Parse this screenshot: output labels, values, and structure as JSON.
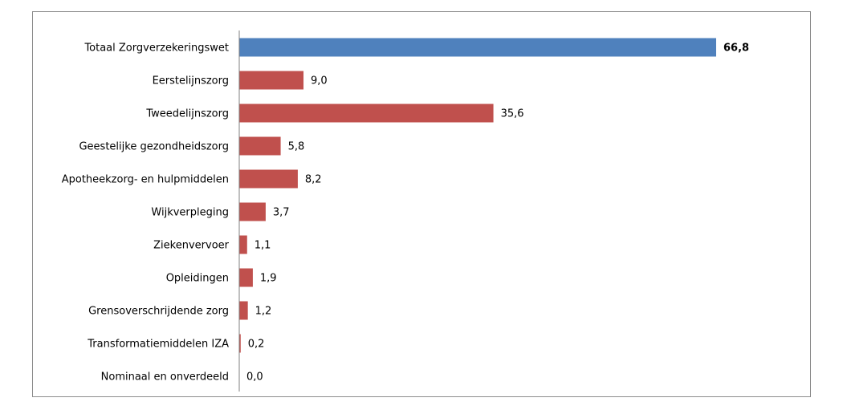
{
  "chart_data": {
    "type": "bar",
    "orientation": "horizontal",
    "categories": [
      "Totaal Zorgverzekeringswet",
      "Eerstelijnszorg",
      "Tweedelijnszorg",
      "Geestelijke gezondheidszorg",
      "Apotheekzorg- en hulpmiddelen",
      "Wijkverpleging",
      "Ziekenvervoer",
      "Opleidingen",
      "Grensoverschrijdende zorg",
      "Transformatiemiddelen IZA",
      "Nominaal en onverdeeld"
    ],
    "values": [
      66.8,
      9.0,
      35.6,
      5.8,
      8.2,
      3.7,
      1.1,
      1.9,
      1.2,
      0.2,
      0.0
    ],
    "value_labels": [
      "66,8",
      "9,0",
      "35,6",
      "5,8",
      "8,2",
      "3,7",
      "1,1",
      "1,9",
      "1,2",
      "0,2",
      "0,0"
    ],
    "highlight_index": 0,
    "colors": {
      "highlight": "#4f81bd",
      "default": "#c0504d",
      "axis": "#808080",
      "frame": "#8c8c8c"
    },
    "title": "",
    "xlabel": "",
    "ylabel": "",
    "xlim": [
      0,
      66.8
    ],
    "grid": false,
    "legend": "none"
  }
}
